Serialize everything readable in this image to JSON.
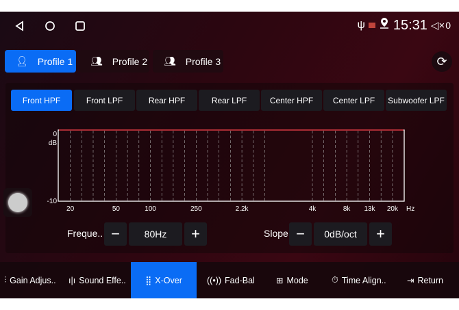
{
  "status": {
    "time": "15:31",
    "volume": "0",
    "icons": [
      "usb-icon",
      "cast-icon",
      "location-icon",
      "mute-icon"
    ]
  },
  "nav": [
    "back-icon",
    "home-icon",
    "recents-icon"
  ],
  "profiles": [
    {
      "label": "Profile 1",
      "active": true
    },
    {
      "label": "Profile 2",
      "active": false
    },
    {
      "label": "Profile 3",
      "active": false
    }
  ],
  "filters": [
    {
      "label": "Front HPF",
      "active": true
    },
    {
      "label": "Front LPF"
    },
    {
      "label": "Rear HPF"
    },
    {
      "label": "Rear LPF"
    },
    {
      "label": "Center HPF"
    },
    {
      "label": "Center LPF"
    },
    {
      "label": "Subwoofer LPF"
    }
  ],
  "chart_data": {
    "type": "line",
    "ylabel": "dB",
    "ylim": [
      -10,
      0
    ],
    "yticks": [
      "0",
      "-10"
    ],
    "xlabel": "Hz",
    "xticks": [
      "20",
      "50",
      "100",
      "250",
      "2.2k",
      "4k",
      "8k",
      "13k",
      "20k"
    ],
    "series": [
      {
        "values": [
          0,
          0,
          0,
          0,
          0,
          0,
          0,
          0,
          0
        ]
      }
    ],
    "line_color": "#c0202a",
    "grid": true
  },
  "frequency": {
    "label": "Freque..",
    "value": "80Hz",
    "minus": "−",
    "plus": "+"
  },
  "slope": {
    "label": "Slope",
    "value": "0dB/oct",
    "minus": "−",
    "plus": "+"
  },
  "bottom": [
    {
      "label": "Gain Adjus..",
      "icon": "sliders-icon"
    },
    {
      "label": "Sound Effe..",
      "icon": "waveform-icon"
    },
    {
      "label": "X-Over",
      "icon": "equalizer-icon",
      "active": true
    },
    {
      "label": "Fad-Bal",
      "icon": "speaker-balance-icon"
    },
    {
      "label": "Mode",
      "icon": "mode-icon"
    },
    {
      "label": "Time Align..",
      "icon": "stopwatch-icon"
    },
    {
      "label": "Return",
      "icon": "return-icon"
    }
  ],
  "accent": "#0a6cf5"
}
